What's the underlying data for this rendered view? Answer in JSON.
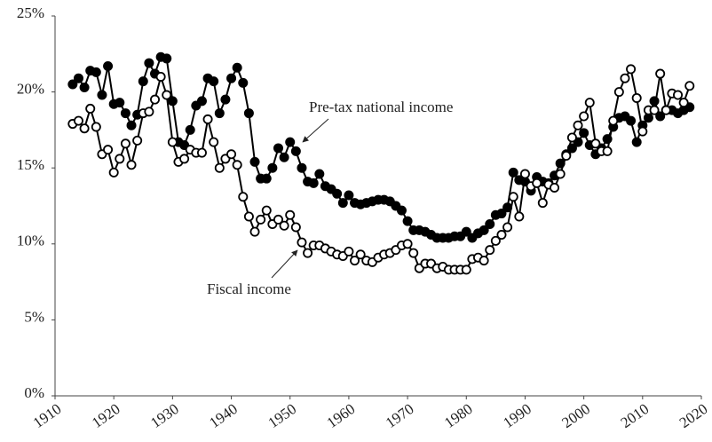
{
  "chart_data": {
    "type": "line",
    "x": [
      1913,
      1914,
      1915,
      1916,
      1917,
      1918,
      1919,
      1920,
      1921,
      1922,
      1923,
      1924,
      1925,
      1926,
      1927,
      1928,
      1929,
      1930,
      1931,
      1932,
      1933,
      1934,
      1935,
      1936,
      1937,
      1938,
      1939,
      1940,
      1941,
      1942,
      1943,
      1944,
      1945,
      1946,
      1947,
      1948,
      1949,
      1950,
      1951,
      1952,
      1953,
      1954,
      1955,
      1956,
      1957,
      1958,
      1959,
      1960,
      1961,
      1962,
      1963,
      1964,
      1965,
      1966,
      1967,
      1968,
      1969,
      1970,
      1971,
      1972,
      1973,
      1974,
      1975,
      1976,
      1977,
      1978,
      1979,
      1980,
      1981,
      1982,
      1983,
      1984,
      1985,
      1986,
      1987,
      1988,
      1989,
      1990,
      1991,
      1992,
      1993,
      1994,
      1995,
      1996,
      1997,
      1998,
      1999,
      2000,
      2001,
      2002,
      2003,
      2004,
      2005,
      2006,
      2007,
      2008,
      2009,
      2010,
      2011,
      2012,
      2013,
      2014,
      2015,
      2016,
      2017,
      2018
    ],
    "series": [
      {
        "name": "Pre-tax national income",
        "color": "#000000",
        "marker_fill": "#000000",
        "values": [
          20.5,
          20.9,
          20.3,
          21.4,
          21.3,
          19.8,
          21.7,
          19.2,
          19.3,
          18.6,
          17.8,
          18.5,
          20.7,
          21.9,
          21.2,
          22.3,
          22.2,
          19.4,
          16.7,
          16.5,
          17.5,
          19.1,
          19.4,
          20.9,
          20.7,
          18.6,
          19.5,
          20.9,
          21.6,
          20.6,
          18.6,
          15.4,
          14.3,
          14.3,
          15.0,
          16.3,
          15.7,
          16.7,
          16.1,
          15.0,
          14.1,
          14.0,
          14.6,
          13.8,
          13.6,
          13.3,
          12.7,
          13.2,
          12.7,
          12.6,
          12.7,
          12.8,
          12.9,
          12.9,
          12.8,
          12.5,
          12.2,
          11.5,
          10.9,
          10.9,
          10.8,
          10.6,
          10.4,
          10.4,
          10.4,
          10.5,
          10.5,
          10.8,
          10.4,
          10.7,
          10.9,
          11.3,
          11.9,
          12.0,
          12.4,
          14.7,
          14.2,
          14.1,
          13.5,
          14.4,
          14.1,
          14.0,
          14.5,
          15.3,
          15.9,
          16.3,
          16.7,
          17.3,
          16.5,
          15.9,
          16.3,
          16.9,
          17.7,
          18.3,
          18.4,
          18.1,
          16.7,
          17.8,
          18.3,
          19.4,
          18.4,
          18.8,
          18.8,
          18.6,
          18.8,
          19.0
        ]
      },
      {
        "name": "Fiscal income",
        "color": "#000000",
        "marker_fill": "#ffffff",
        "values": [
          17.9,
          18.1,
          17.6,
          18.9,
          17.7,
          15.9,
          16.2,
          14.7,
          15.6,
          16.6,
          15.2,
          16.8,
          18.6,
          18.7,
          19.5,
          21.0,
          19.8,
          16.7,
          15.4,
          15.6,
          16.2,
          16.0,
          16.0,
          18.2,
          16.7,
          15.0,
          15.6,
          15.9,
          15.2,
          13.1,
          11.8,
          10.8,
          11.6,
          12.2,
          11.3,
          11.6,
          11.2,
          11.9,
          11.1,
          10.1,
          9.4,
          9.9,
          9.9,
          9.7,
          9.5,
          9.3,
          9.2,
          9.5,
          8.9,
          9.3,
          8.9,
          8.8,
          9.1,
          9.3,
          9.4,
          9.6,
          9.9,
          10.0,
          9.4,
          8.4,
          8.7,
          8.7,
          8.4,
          8.5,
          8.3,
          8.3,
          8.3,
          8.3,
          9.0,
          9.1,
          8.9,
          9.6,
          10.2,
          10.6,
          11.1,
          13.1,
          11.8,
          14.6,
          13.8,
          14.0,
          12.7,
          13.9,
          13.7,
          14.6,
          15.8,
          17.0,
          17.8,
          18.4,
          19.3,
          16.6,
          16.1,
          16.1,
          18.1,
          20.0,
          20.9,
          21.5,
          19.6,
          17.4,
          18.8,
          18.8,
          21.2,
          18.8,
          19.9,
          19.8,
          19.3,
          20.4
        ]
      }
    ],
    "xlim": [
      1910,
      2020
    ],
    "xticks": [
      1910,
      1920,
      1930,
      1940,
      1950,
      1960,
      1970,
      1980,
      1990,
      2000,
      2010,
      2020
    ],
    "ylim": [
      0,
      25
    ],
    "yticks": [
      {
        "value": 0,
        "label": "0%"
      },
      {
        "value": 5,
        "label": "5%"
      },
      {
        "value": 10,
        "label": "10%"
      },
      {
        "value": 15,
        "label": "15%"
      },
      {
        "value": 20,
        "label": "20%"
      },
      {
        "value": 25,
        "label": "25%"
      }
    ]
  }
}
